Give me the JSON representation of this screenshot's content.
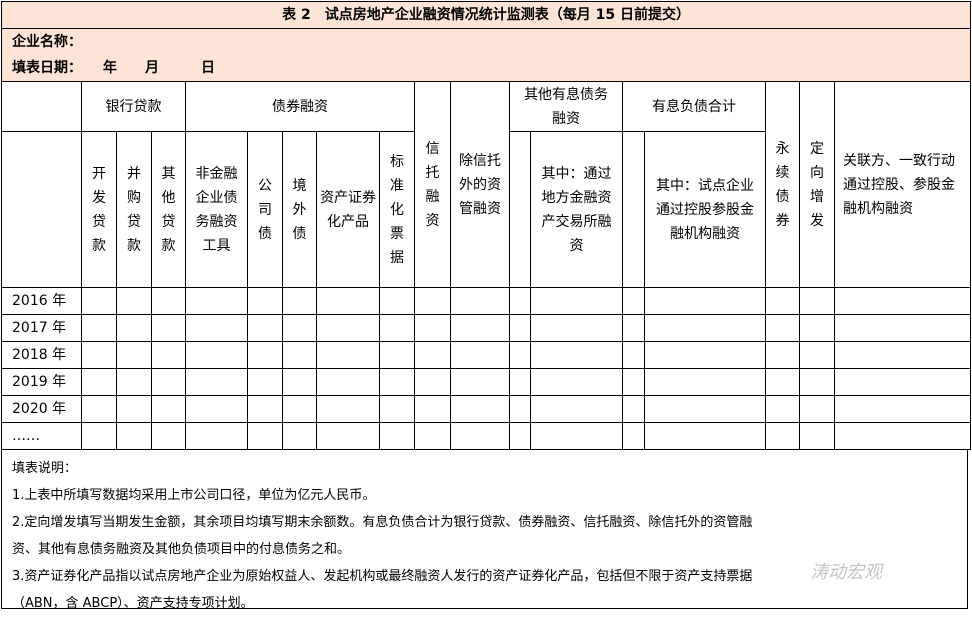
{
  "title": "表 2　试点房地产企业融资情况统计监测表（每月 15 日前提交）",
  "company_label": "企业名称：",
  "date_label": "填表日期：　　年　　月　　　日",
  "headers": {
    "bank_loans": "银行贷款",
    "bond_financing": "债券融资",
    "trust": "信托融资",
    "asset_mgmt": "除信托外的资管融资",
    "other_debt": "其他有息债务融资",
    "total_debt": "有息负债合计",
    "perpetual": "永续债券",
    "private_placement": "定向增发",
    "related": "关联方、一致行动通过控股、参股金融机构融资",
    "dev_loan": "开发贷款",
    "ma_loan": "并购贷款",
    "other_loan": "其他贷款",
    "nonfin_debt": "非金融企业债务融资工具",
    "corp_bond": "公司债",
    "overseas_bond": "境外债",
    "abs": "资产证券化产品",
    "std_bill": "标准化票据",
    "other_debt_sub": "其中：通过地方金融资产交易所融资",
    "total_debt_sub": "其中：试点企业通过控股参股金融机构融资"
  },
  "years": [
    "2016 年",
    "2017 年",
    "2018 年",
    "2019 年",
    "2020 年",
    "……"
  ],
  "notes": [
    "填表说明：",
    "1.上表中所填写数据均采用上市公司口径，单位为亿元人民币。",
    "2.定向增发填写当期发生金额，其余项目均填写期末余额数。有息负债合计为银行贷款、债券融资、信托融资、除信托外的资管融",
    "资、其他有息债务融资及其他负债项目中的付息债务之和。",
    "3.资产证券化产品指以试点房地产企业为原始权益人、发起机构或最终融资人发行的资产证券化产品，包括但不限于资产支持票据",
    "（ABN，含 ABCP）、资产支持专项计划。"
  ],
  "watermark": "涛动宏观"
}
